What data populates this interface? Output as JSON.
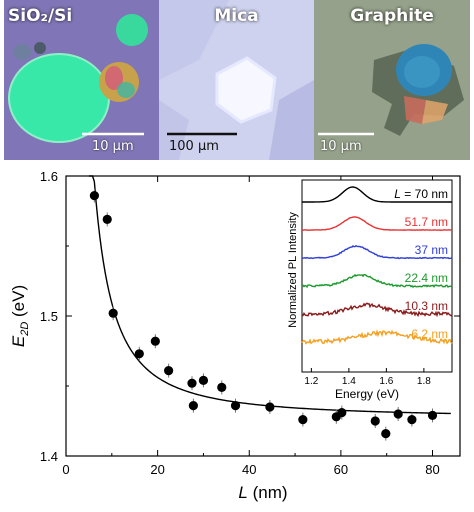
{
  "panels": [
    {
      "label": "SiO₂/Si",
      "scale_text": "10 µm"
    },
    {
      "label": "Mica",
      "scale_text": "100 µm"
    },
    {
      "label": "Graphite",
      "scale_text": "10 µm"
    }
  ],
  "colors": {
    "sio2_background": "#8a7fbf",
    "flake_green": "#37e8a8",
    "mica_background": "#cfd2ee",
    "graphite_background": "#9aa590",
    "data_point": "#000000",
    "spectra": [
      "#000000",
      "#e83232",
      "#2f3fd8",
      "#1c9a2c",
      "#8b1a1a",
      "#f5a020"
    ]
  },
  "chart_data": [
    {
      "type": "scatter",
      "title": "",
      "xlabel": "L (nm)",
      "ylabel": "E2D (eV)",
      "xlabel_parts": {
        "var": "L",
        "unit": " (nm)"
      },
      "ylabel_parts": {
        "var": "E",
        "sub": "2D",
        "unit": " (eV)"
      },
      "xlim": [
        0,
        86
      ],
      "ylim": [
        1.4,
        1.6
      ],
      "xticks": [
        0,
        20,
        40,
        60,
        80
      ],
      "yticks": [
        1.4,
        1.5,
        1.6
      ],
      "ytick_labels": [
        "1.4",
        "1.5",
        "1.6"
      ],
      "grid": false,
      "series": [
        {
          "x": [
            6.2,
            9.0,
            10.3,
            16.0,
            19.5,
            22.4,
            27.5,
            27.8,
            30.0,
            34.0,
            37.0,
            44.5,
            51.7,
            59.0,
            60.2,
            67.5,
            69.8,
            72.5,
            75.5,
            80.0
          ],
          "y": [
            1.586,
            1.569,
            1.502,
            1.473,
            1.482,
            1.461,
            1.452,
            1.436,
            1.454,
            1.449,
            1.436,
            1.435,
            1.426,
            1.428,
            1.431,
            1.425,
            1.416,
            1.43,
            1.426,
            1.429
          ]
        }
      ],
      "fit_curve": {
        "description": "smooth fit",
        "y_asymptote": 1.427
      }
    },
    {
      "type": "line",
      "title": "",
      "xlabel": "Energy (eV)",
      "ylabel": "Normalized PL Intensity",
      "xlim": [
        1.15,
        1.95
      ],
      "xticks": [
        1.2,
        1.4,
        1.6,
        1.8
      ],
      "xtick_labels": [
        "1.2",
        "1.4",
        "1.6",
        "1.8"
      ],
      "series": [
        {
          "name": "L = 70 nm",
          "peak_eV": 1.42
        },
        {
          "name": "51.7 nm",
          "peak_eV": 1.43
        },
        {
          "name": "37 nm",
          "peak_eV": 1.44
        },
        {
          "name": "22.4 nm",
          "peak_eV": 1.46
        },
        {
          "name": "10.3 nm",
          "peak_eV": 1.5
        },
        {
          "name": "6.2 nm",
          "peak_eV": 1.59
        }
      ]
    }
  ]
}
